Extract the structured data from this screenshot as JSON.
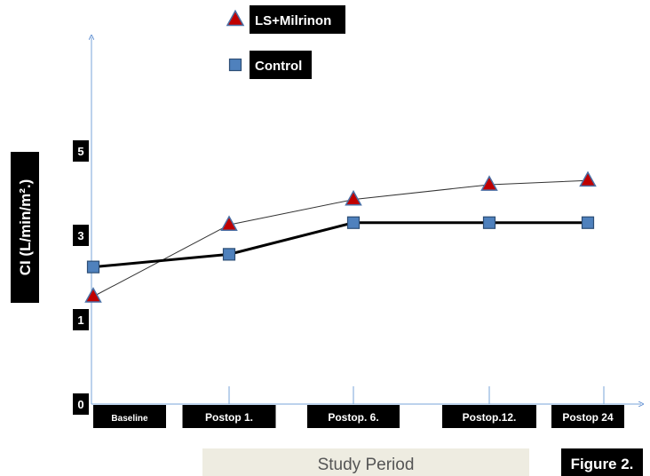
{
  "figure_label": "Figure 2.",
  "chart_data": {
    "type": "line",
    "title": "",
    "xlabel": "Study Period",
    "ylabel": "CI (L/min/m².)",
    "categories": [
      "Baseline",
      "Postop 1.",
      "Postop. 6.",
      "Postop.12.",
      "Postop 24"
    ],
    "y_ticks": [
      "0",
      "1",
      "3",
      "5"
    ],
    "series": [
      {
        "name": "LS+Milrinon",
        "marker": "triangle",
        "marker_color": "#c00000",
        "marker_edge": "#4a6fa5",
        "line_color": "#333333",
        "line_style": "thin",
        "values": [
          1.55,
          3.25,
          3.85,
          4.2,
          4.3
        ]
      },
      {
        "name": "Control",
        "marker": "square",
        "marker_color": "#4f81bd",
        "marker_edge": "#2c4d75",
        "line_color": "#000000",
        "line_style": "thick",
        "values": [
          2.25,
          2.55,
          3.3,
          3.3,
          3.3
        ]
      }
    ],
    "grid": false,
    "legend_position": "top-center"
  }
}
